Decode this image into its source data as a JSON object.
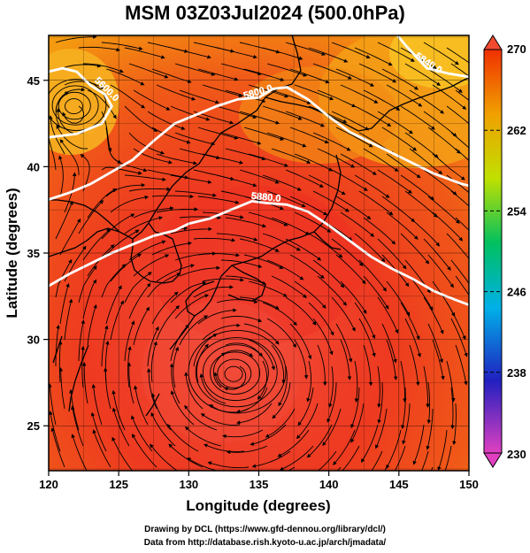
{
  "title": "MSM 03Z03Jul2024 (500.0hPa)",
  "xaxis": {
    "label": "Longitude (degrees)",
    "range": [
      120,
      150
    ],
    "ticks": [
      "120",
      "125",
      "130",
      "135",
      "140",
      "145",
      "150"
    ]
  },
  "yaxis": {
    "label": "Latitude  (degrees)",
    "range": [
      22.4,
      47.6
    ],
    "ticks": [
      "25",
      "30",
      "35",
      "40",
      "45"
    ]
  },
  "colorbar": {
    "min": 230,
    "max": 270,
    "labels": [
      "270",
      "262",
      "254",
      "246",
      "238",
      "230"
    ],
    "stops": [
      "#e040c0",
      "#2020c0",
      "#00b0e8",
      "#00c060",
      "#c0e000",
      "#f0a000",
      "#f03000"
    ]
  },
  "contours": [
    {
      "label": "5600.0",
      "points": [
        [
          120,
          45.5
        ],
        [
          121,
          45.7
        ],
        [
          122,
          45.5
        ],
        [
          123,
          44.7
        ],
        [
          124,
          44.2
        ],
        [
          124.5,
          43.5
        ],
        [
          123.8,
          42.5
        ],
        [
          122,
          41.9
        ],
        [
          120,
          41.7
        ]
      ]
    },
    {
      "label": "5800.0",
      "points": [
        [
          120,
          38.1
        ],
        [
          121.5,
          38.5
        ],
        [
          123,
          39.0
        ],
        [
          124.5,
          39.7
        ],
        [
          126,
          40.4
        ],
        [
          127.5,
          41.5
        ],
        [
          129,
          42.5
        ],
        [
          130.5,
          43.0
        ],
        [
          132,
          43.5
        ],
        [
          133.5,
          43.9
        ],
        [
          135,
          44.0
        ],
        [
          136,
          44.5
        ],
        [
          137,
          44.6
        ],
        [
          138.5,
          43.9
        ],
        [
          140,
          42.9
        ],
        [
          141.5,
          42.0
        ],
        [
          143.5,
          41.2
        ],
        [
          145.5,
          40.4
        ],
        [
          147.5,
          39.6
        ],
        [
          149.5,
          39.0
        ],
        [
          150,
          38.9
        ]
      ]
    },
    {
      "label": "5840.0",
      "points": [
        [
          144.5,
          48
        ],
        [
          145.5,
          47.0
        ],
        [
          147,
          45.7
        ],
        [
          148.5,
          45.4
        ],
        [
          150,
          45.2
        ]
      ]
    },
    {
      "label": "5880.0",
      "points": [
        [
          120,
          33.1
        ],
        [
          121.5,
          33.8
        ],
        [
          123,
          34.4
        ],
        [
          124.5,
          35.0
        ],
        [
          126,
          35.5
        ],
        [
          127.5,
          36.0
        ],
        [
          129,
          36.3
        ],
        [
          130,
          36.7
        ],
        [
          131.5,
          37.0
        ],
        [
          133,
          37.5
        ],
        [
          134.5,
          38.0
        ],
        [
          135.5,
          37.9
        ],
        [
          137,
          37.8
        ],
        [
          138.5,
          37.4
        ],
        [
          140,
          36.6
        ],
        [
          141.5,
          35.7
        ],
        [
          143,
          34.8
        ],
        [
          144.5,
          34.1
        ],
        [
          146,
          33.5
        ],
        [
          147.5,
          32.8
        ],
        [
          149,
          32.3
        ],
        [
          150,
          32.0
        ]
      ]
    }
  ],
  "wind_field": {
    "kind": "streamlines",
    "vortices": [
      {
        "type": "cyclonic",
        "center": [
          133.2,
          28.0
        ]
      },
      {
        "type": "cyclonic",
        "center": [
          121.8,
          43.5
        ]
      }
    ]
  },
  "credits": [
    "Drawing by DCL (https://www.gfd-dennou.org/library/dcl/)",
    "Data from http://database.rish.kyoto-u.ac.jp/arch/jmadata/"
  ]
}
